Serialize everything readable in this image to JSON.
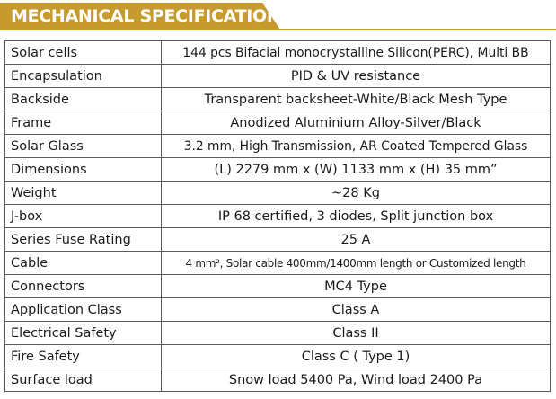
{
  "header": {
    "title": "MECHANICAL SPECIFICATION"
  },
  "colors": {
    "accent": "#c69a2d",
    "border": "#5a5a5a",
    "text": "#1a1a1a"
  },
  "specs": [
    {
      "label": "Solar cells",
      "value": "144 pcs Bifacial monocrystalline Silicon(PERC), Multi BB"
    },
    {
      "label": "Encapsulation",
      "value": "PID & UV resistance"
    },
    {
      "label": "Backside",
      "value": "Transparent backsheet-White/Black Mesh Type"
    },
    {
      "label": "Frame",
      "value": "Anodized Aluminium Alloy-Silver/Black"
    },
    {
      "label": "Solar Glass",
      "value": "3.2 mm, High Transmission, AR Coated Tempered Glass"
    },
    {
      "label": "Dimensions",
      "value": "(L) 2279 mm x (W) 1133 mm x (H) 35 mm”"
    },
    {
      "label": "Weight",
      "value": "~28 Kg"
    },
    {
      "label": "J-box",
      "value": "IP 68 certified, 3 diodes, Split junction box"
    },
    {
      "label": "Series Fuse Rating",
      "value": "25 A"
    },
    {
      "label": "Cable",
      "value": "4 mm², Solar cable 400mm/1400mm length or Customized length"
    },
    {
      "label": "Connectors",
      "value": "MC4 Type"
    },
    {
      "label": "Application Class",
      "value": "Class A"
    },
    {
      "label": "Electrical Safety",
      "value": "Class II"
    },
    {
      "label": "Fire Safety",
      "value": "Class C ( Type 1)"
    },
    {
      "label": "Surface load",
      "value": "Snow load 5400 Pa, Wind load 2400 Pa"
    }
  ]
}
